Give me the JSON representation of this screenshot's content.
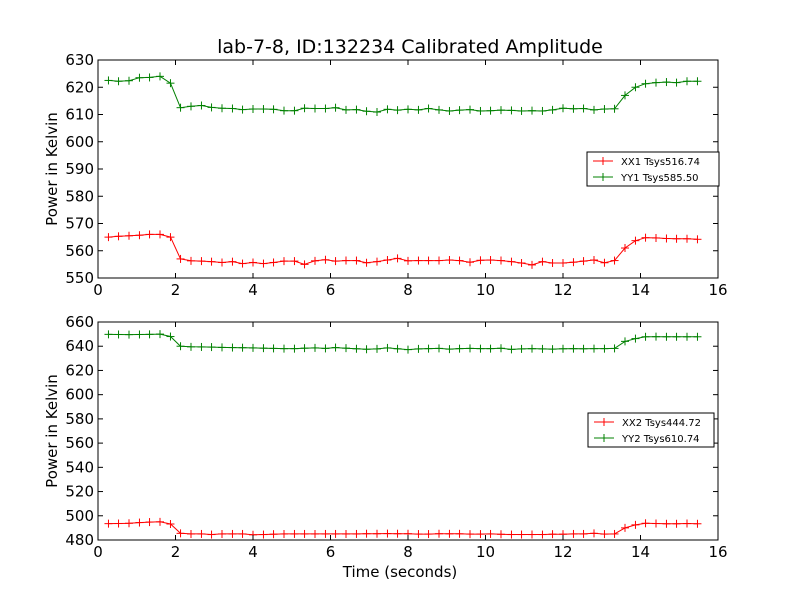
{
  "figure": {
    "title": "lab-7-8, ID:132234 Calibrated Amplitude"
  },
  "chart_data": [
    {
      "type": "line",
      "xlabel": "",
      "ylabel": "Power in Kelvin",
      "xlim": [
        0,
        16
      ],
      "ylim": [
        550,
        630
      ],
      "xticks": [
        0,
        2,
        4,
        6,
        8,
        10,
        12,
        14,
        16
      ],
      "yticks": [
        550,
        560,
        570,
        580,
        590,
        600,
        610,
        620,
        630
      ],
      "grid": false,
      "legend_position": "center-right",
      "x": [
        0.27,
        0.53,
        0.8,
        1.07,
        1.33,
        1.6,
        1.87,
        2.13,
        2.4,
        2.67,
        2.93,
        3.2,
        3.47,
        3.73,
        4.0,
        4.27,
        4.53,
        4.8,
        5.07,
        5.33,
        5.6,
        5.87,
        6.13,
        6.4,
        6.67,
        6.93,
        7.2,
        7.47,
        7.73,
        8.0,
        8.27,
        8.53,
        8.8,
        9.07,
        9.33,
        9.6,
        9.87,
        10.13,
        10.4,
        10.67,
        10.93,
        11.2,
        11.47,
        11.73,
        12.0,
        12.27,
        12.53,
        12.8,
        13.07,
        13.33,
        13.6,
        13.87,
        14.13,
        14.4,
        14.67,
        14.93,
        15.2,
        15.47
      ],
      "series": [
        {
          "name": "XX1 Tsys516.74",
          "color": "#ff0000",
          "values": [
            565,
            565.3,
            565.5,
            565.7,
            566,
            566,
            565,
            557,
            556.3,
            556.2,
            556,
            555.7,
            556,
            555.3,
            555.7,
            555.3,
            555.7,
            556.2,
            556.2,
            555,
            556.3,
            556.7,
            556.2,
            556.4,
            556.4,
            555.6,
            556,
            556.6,
            557.2,
            556.3,
            556.4,
            556.4,
            556.4,
            556.6,
            556.4,
            555.8,
            556.5,
            556.6,
            556.4,
            556,
            555.5,
            554.8,
            556,
            555.5,
            555.5,
            555.8,
            556.2,
            556.6,
            555.6,
            556.4,
            561,
            563.7,
            564.8,
            564.7,
            564.5,
            564.4,
            564.4,
            564.2
          ]
        },
        {
          "name": "YY1 Tsys585.50",
          "color": "#008000",
          "values": [
            622.5,
            622.2,
            622.4,
            623.5,
            623.6,
            624,
            621.5,
            612.5,
            613,
            613.3,
            612.6,
            612.3,
            612.2,
            611.8,
            612,
            612,
            611.9,
            611.4,
            611.4,
            612.3,
            612.2,
            612.2,
            612.5,
            611.7,
            611.8,
            611.2,
            610.9,
            611.9,
            611.6,
            611.9,
            611.7,
            612.2,
            611.7,
            611.3,
            611.6,
            611.8,
            611.3,
            611.4,
            611.6,
            611.5,
            611.3,
            611.4,
            611.3,
            611.7,
            612.3,
            612.1,
            612.2,
            611.7,
            612,
            612.1,
            617,
            620,
            621.3,
            621.7,
            621.9,
            621.7,
            622.2,
            622.2
          ]
        }
      ]
    },
    {
      "type": "line",
      "xlabel": "Time (seconds)",
      "ylabel": "Power in Kelvin",
      "xlim": [
        0,
        16
      ],
      "ylim": [
        480,
        660
      ],
      "xticks": [
        0,
        2,
        4,
        6,
        8,
        10,
        12,
        14,
        16
      ],
      "yticks": [
        480,
        500,
        520,
        540,
        560,
        580,
        600,
        620,
        640,
        660
      ],
      "grid": false,
      "legend_position": "center-right",
      "x": [
        0.27,
        0.53,
        0.8,
        1.07,
        1.33,
        1.6,
        1.87,
        2.13,
        2.4,
        2.67,
        2.93,
        3.2,
        3.47,
        3.73,
        4.0,
        4.27,
        4.53,
        4.8,
        5.07,
        5.33,
        5.6,
        5.87,
        6.13,
        6.4,
        6.67,
        6.93,
        7.2,
        7.47,
        7.73,
        8.0,
        8.27,
        8.53,
        8.8,
        9.07,
        9.33,
        9.6,
        9.87,
        10.13,
        10.4,
        10.67,
        10.93,
        11.2,
        11.47,
        11.73,
        12.0,
        12.27,
        12.53,
        12.8,
        13.07,
        13.33,
        13.6,
        13.87,
        14.13,
        14.4,
        14.67,
        14.93,
        15.2,
        15.47
      ],
      "series": [
        {
          "name": "XX2 Tsys444.72",
          "color": "#ff0000",
          "values": [
            493.5,
            493.6,
            493.8,
            494.4,
            494.8,
            495,
            493.2,
            485.5,
            485,
            485,
            484.5,
            485,
            485,
            485,
            484.3,
            484.5,
            484.8,
            485,
            485,
            485,
            485,
            485,
            485,
            485,
            485,
            485.2,
            485.2,
            485.3,
            485.2,
            485.2,
            484.9,
            484.9,
            485.2,
            485.1,
            485.1,
            484.9,
            484.9,
            485,
            484.7,
            484.5,
            484.5,
            484.5,
            484.5,
            484.8,
            484.8,
            485,
            485,
            485.5,
            484.9,
            485,
            490,
            492.5,
            493.8,
            493.6,
            493.4,
            493.4,
            493.6,
            493.4
          ]
        },
        {
          "name": "YY2 Tsys610.74",
          "color": "#008000",
          "values": [
            649.8,
            649.7,
            649.6,
            649.7,
            649.8,
            650,
            648,
            640,
            639.5,
            639.4,
            639.3,
            639,
            638.9,
            638.8,
            638.6,
            638.4,
            638.2,
            638,
            638,
            638.4,
            638.6,
            638.2,
            638.9,
            638.4,
            637.9,
            637.5,
            637.8,
            638.6,
            637.9,
            637.2,
            637.8,
            638,
            638.2,
            637.6,
            638,
            638.2,
            638,
            638,
            638.3,
            637.4,
            637.8,
            638,
            637.8,
            637.6,
            637.9,
            638,
            637.9,
            638,
            638,
            638.2,
            644,
            646.3,
            647.8,
            647.9,
            647.8,
            647.8,
            647.8,
            647.8
          ]
        }
      ]
    }
  ]
}
